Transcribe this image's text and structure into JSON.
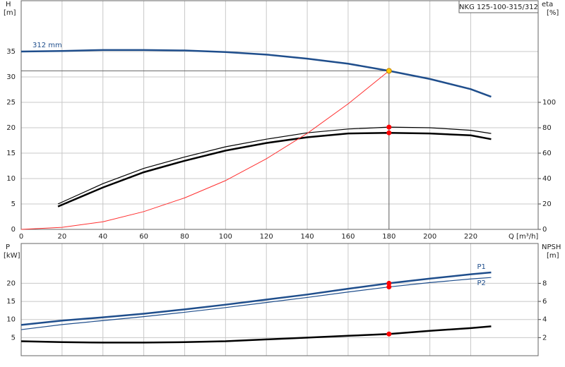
{
  "chart_data": [
    {
      "type": "line",
      "title": "NKG 125-100-315/312",
      "xlabel": "Q [m³/h]",
      "ylabel": "H",
      "yunit": "[m]",
      "y2label": "eta",
      "y2unit": "[%]",
      "xlim": [
        0,
        253
      ],
      "xticks": [
        0,
        20,
        40,
        60,
        80,
        100,
        120,
        140,
        160,
        180,
        200,
        220
      ],
      "ylim": [
        0,
        45
      ],
      "yticks": [
        0,
        5,
        10,
        15,
        20,
        25,
        30,
        35
      ],
      "y2lim": [
        0,
        180
      ],
      "y2ticks": [
        0,
        20,
        40,
        60,
        80,
        100
      ],
      "grid": true,
      "series": [
        {
          "name": "312 mm",
          "color": "#1f4e8c",
          "width": 2.5,
          "x": [
            0,
            20,
            40,
            60,
            80,
            100,
            120,
            140,
            160,
            180,
            200,
            220,
            230
          ],
          "values": [
            35.0,
            35.1,
            35.3,
            35.3,
            35.2,
            34.9,
            34.4,
            33.6,
            32.6,
            31.2,
            29.6,
            27.6,
            26.1
          ]
        },
        {
          "color": "#000000",
          "width": 1.2,
          "axis": "y2",
          "x": [
            18,
            40,
            60,
            80,
            100,
            120,
            140,
            160,
            180,
            200,
            220,
            230
          ],
          "values": [
            20,
            36,
            48,
            57,
            65,
            71,
            76,
            79,
            80.5,
            80,
            78,
            75.5
          ]
        },
        {
          "color": "#000000",
          "width": 2.5,
          "axis": "y2",
          "x": [
            18,
            40,
            60,
            80,
            100,
            120,
            140,
            160,
            180,
            200,
            220,
            230
          ],
          "values": [
            18,
            33,
            45,
            54,
            62,
            68,
            72.5,
            75.5,
            76,
            75.5,
            74,
            71
          ]
        },
        {
          "color": "#ff3030",
          "width": 1,
          "x": [
            0,
            20,
            40,
            60,
            80,
            100,
            120,
            140,
            160,
            180
          ],
          "values": [
            0,
            0.4,
            1.5,
            3.5,
            6.2,
            9.6,
            13.9,
            18.9,
            24.7,
            31.2
          ]
        }
      ],
      "points": [
        {
          "x": 180,
          "y": 31.2,
          "color": "#ffcc00"
        },
        {
          "x": 180,
          "y": 80.5,
          "axis": "y2",
          "color": "#ff0000"
        },
        {
          "x": 180,
          "y": 76,
          "axis": "y2",
          "color": "#ff0000"
        }
      ],
      "crosshair": true
    },
    {
      "type": "line",
      "ylabel": "P",
      "yunit": "[kW]",
      "y2label": "NPSH",
      "y2unit": "[m]",
      "xlim": [
        0,
        253
      ],
      "xticks": [
        0,
        20,
        40,
        60,
        80,
        100,
        120,
        140,
        160,
        180,
        200,
        220
      ],
      "xtick_labels": false,
      "ylim": [
        0,
        31
      ],
      "yticks": [
        5,
        10,
        15,
        20
      ],
      "y2lim": [
        0,
        12.4
      ],
      "y2ticks": [
        2,
        4,
        6,
        8
      ],
      "grid": true,
      "series": [
        {
          "name": "P1",
          "color": "#1f4e8c",
          "width": 2.5,
          "x": [
            0,
            20,
            40,
            60,
            80,
            100,
            120,
            140,
            160,
            180,
            200,
            220,
            230
          ],
          "values": [
            8.5,
            9.7,
            10.6,
            11.6,
            12.8,
            14.1,
            15.5,
            16.9,
            18.5,
            20.0,
            21.3,
            22.5,
            23.0
          ]
        },
        {
          "name": "P2",
          "color": "#1f4e8c",
          "width": 1.2,
          "x": [
            0,
            20,
            40,
            60,
            80,
            100,
            120,
            140,
            160,
            180,
            200,
            220,
            230
          ],
          "values": [
            7.2,
            8.6,
            9.7,
            10.8,
            12.0,
            13.3,
            14.7,
            16.1,
            17.6,
            19.0,
            20.2,
            21.2,
            21.6
          ]
        },
        {
          "color": "#000000",
          "width": 2.5,
          "axis": "y2",
          "x": [
            0,
            20,
            40,
            60,
            80,
            100,
            120,
            140,
            160,
            180,
            200,
            220,
            230
          ],
          "values": [
            1.6,
            1.5,
            1.45,
            1.45,
            1.5,
            1.6,
            1.8,
            2.0,
            2.2,
            2.4,
            2.75,
            3.05,
            3.25
          ]
        }
      ],
      "points": [
        {
          "x": 180,
          "y": 20.0,
          "color": "#ff0000"
        },
        {
          "x": 180,
          "y": 19.0,
          "color": "#ff0000"
        },
        {
          "x": 180,
          "y": 2.4,
          "axis": "y2",
          "color": "#ff0000"
        }
      ]
    }
  ]
}
